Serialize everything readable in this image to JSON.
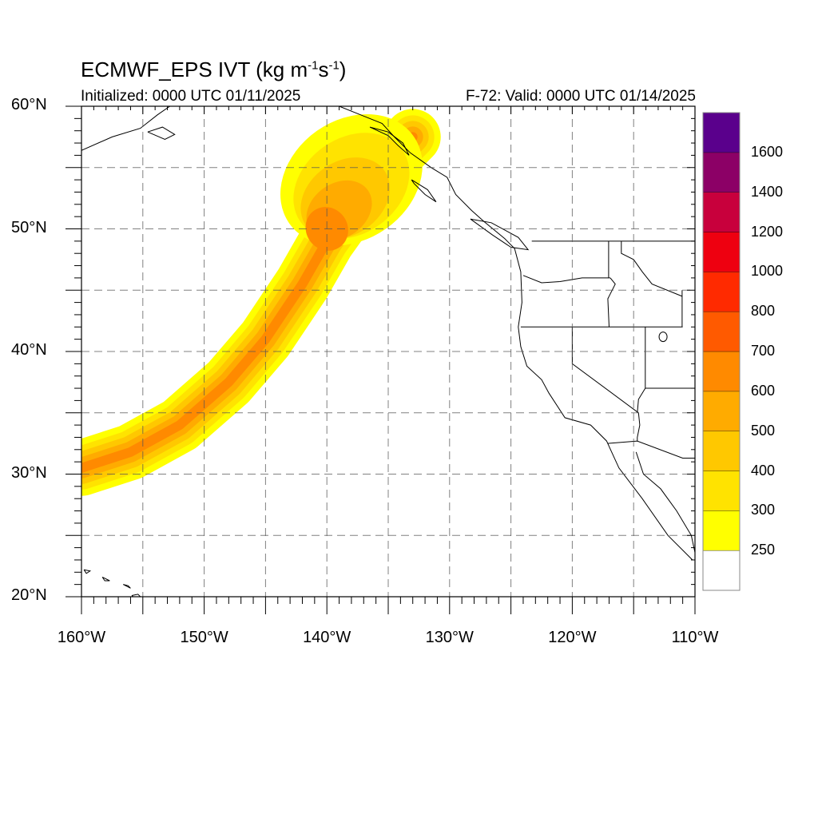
{
  "title": {
    "main": "ECMWF_EPS IVT (kg m",
    "sup1": "-1",
    "mid": "s",
    "sup2": "-1",
    "end": ")"
  },
  "subtitle_left": "Initialized: 0000 UTC 01/11/2025",
  "subtitle_right": "F-72: Valid: 0000 UTC 01/14/2025",
  "lat_labels": [
    {
      "text": "60°N",
      "lat": 60
    },
    {
      "text": "50°N",
      "lat": 50
    },
    {
      "text": "40°N",
      "lat": 40
    },
    {
      "text": "30°N",
      "lat": 30
    },
    {
      "text": "20°N",
      "lat": 20
    }
  ],
  "lon_labels": [
    {
      "text": "160°W",
      "lon": -160
    },
    {
      "text": "150°W",
      "lon": -150
    },
    {
      "text": "140°W",
      "lon": -140
    },
    {
      "text": "130°W",
      "lon": -130
    },
    {
      "text": "120°W",
      "lon": -120
    },
    {
      "text": "110°W",
      "lon": -110
    }
  ],
  "map_extent": {
    "lon_min": -160,
    "lon_max": -110,
    "lat_min": 20,
    "lat_max": 60
  },
  "colorbar": {
    "labels": [
      "1600",
      "1400",
      "1200",
      "1000",
      "800",
      "700",
      "600",
      "500",
      "400",
      "300",
      "250"
    ],
    "colors": [
      "#ffffff",
      "#ffff00",
      "#ffe300",
      "#ffc800",
      "#ffab00",
      "#ff8a00",
      "#ff5a00",
      "#ff2a00",
      "#ee0010",
      "#c8003c",
      "#8c0066",
      "#5a008c"
    ]
  },
  "ivt_plume": {
    "levels": [
      250,
      300,
      400,
      500,
      600,
      700
    ],
    "centerline": [
      {
        "lon": -160,
        "lat": 30.5
      },
      {
        "lon": -156,
        "lat": 31.8
      },
      {
        "lon": -152,
        "lat": 34.0
      },
      {
        "lon": -148,
        "lat": 37.5
      },
      {
        "lon": -145,
        "lat": 41.0
      },
      {
        "lon": -142,
        "lat": 45.5
      },
      {
        "lon": -140,
        "lat": 49.0
      },
      {
        "lon": -137.5,
        "lat": 52.5
      },
      {
        "lon": -135,
        "lat": 55.5
      },
      {
        "lon": -133,
        "lat": 57.5
      }
    ]
  }
}
